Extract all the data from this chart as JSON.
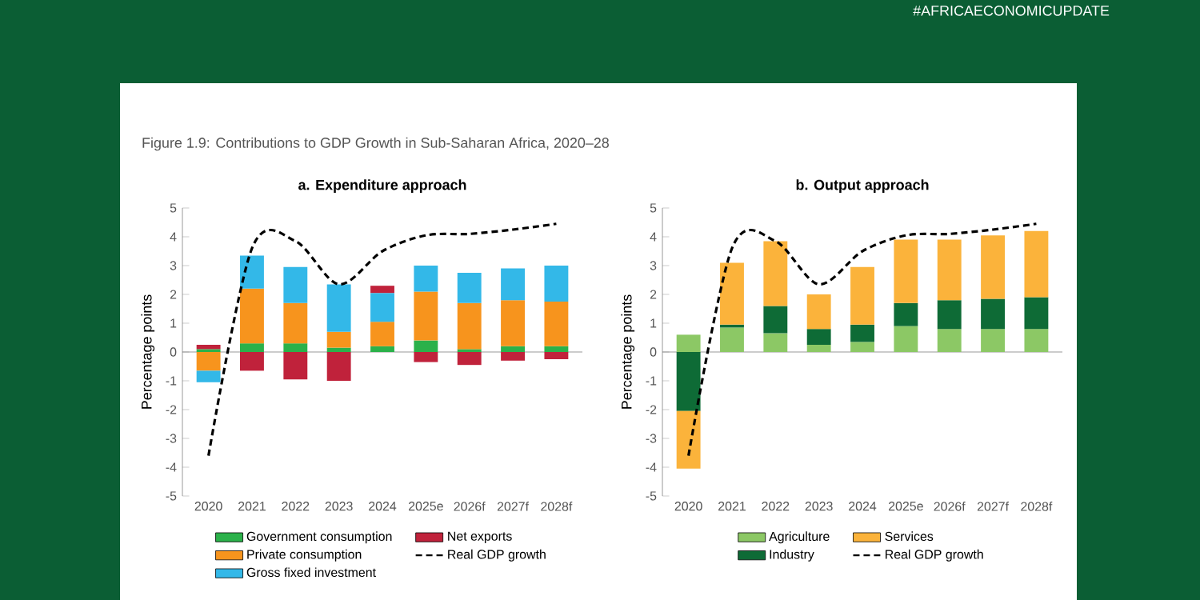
{
  "chart_data": [
    {
      "type": "bar",
      "stacked": true,
      "title": "a. Expenditure approach",
      "ylabel": "Percentage points",
      "annotations": [
        "#AFRICAECONOMICUPDATE",
        "Figure 1.9: Contributions to GDP Growth in Sub-Saharan Africa, 2020–28"
      ],
      "categories": [
        "2020",
        "2021",
        "2022",
        "2023",
        "2024",
        "2025e",
        "2026f",
        "2027f",
        "2028f"
      ],
      "ylim": [
        -5,
        5
      ],
      "yticks": [
        -5,
        -4,
        -3,
        -2,
        -1,
        0,
        1,
        2,
        3,
        4,
        5
      ],
      "legend": "bottom",
      "series": [
        {
          "name": "Government consumption",
          "color": "#2bb14a",
          "values": [
            0.1,
            0.3,
            0.3,
            0.15,
            0.2,
            0.4,
            0.1,
            0.2,
            0.2
          ]
        },
        {
          "name": "Private consumption",
          "color": "#f7941d",
          "values": [
            -0.65,
            1.9,
            1.4,
            0.55,
            0.85,
            1.7,
            1.6,
            1.6,
            1.55
          ]
        },
        {
          "name": "Gross fixed investment",
          "color": "#33b8e8",
          "values": [
            -0.4,
            1.15,
            1.25,
            1.65,
            1.0,
            0.9,
            1.05,
            1.1,
            1.25
          ]
        },
        {
          "name": "Net exports",
          "color": "#c0223b",
          "values": [
            0.15,
            -0.65,
            -0.95,
            -1.0,
            0.25,
            -0.35,
            -0.45,
            -0.3,
            -0.25
          ]
        },
        {
          "name": "Real GDP growth",
          "type": "line",
          "line_style": "dashed",
          "color": "#000000",
          "values": [
            -3.6,
            3.6,
            3.85,
            2.35,
            3.5,
            4.05,
            4.1,
            4.25,
            4.45
          ]
        }
      ]
    },
    {
      "type": "bar",
      "stacked": true,
      "title": "b. Output approach",
      "ylabel": "Percentage points",
      "categories": [
        "2020",
        "2021",
        "2022",
        "2023",
        "2024",
        "2025e",
        "2026f",
        "2027f",
        "2028f"
      ],
      "ylim": [
        -5,
        5
      ],
      "yticks": [
        -5,
        -4,
        -3,
        -2,
        -1,
        0,
        1,
        2,
        3,
        4,
        5
      ],
      "legend": "bottom",
      "series": [
        {
          "name": "Agriculture",
          "color": "#8cc865",
          "values": [
            0.6,
            0.85,
            0.65,
            0.25,
            0.35,
            0.9,
            0.8,
            0.8,
            0.8
          ]
        },
        {
          "name": "Industry",
          "color": "#0e6b36",
          "values": [
            -2.05,
            0.1,
            0.95,
            0.55,
            0.6,
            0.8,
            1.0,
            1.05,
            1.1
          ]
        },
        {
          "name": "Services",
          "color": "#fbb33b",
          "values": [
            -2.0,
            2.15,
            2.25,
            1.2,
            2.0,
            2.2,
            2.1,
            2.2,
            2.3
          ]
        },
        {
          "name": "Real GDP growth",
          "type": "line",
          "line_style": "dashed",
          "color": "#000000",
          "values": [
            -3.6,
            3.6,
            3.85,
            2.35,
            3.5,
            4.05,
            4.1,
            4.25,
            4.45
          ]
        }
      ]
    }
  ]
}
